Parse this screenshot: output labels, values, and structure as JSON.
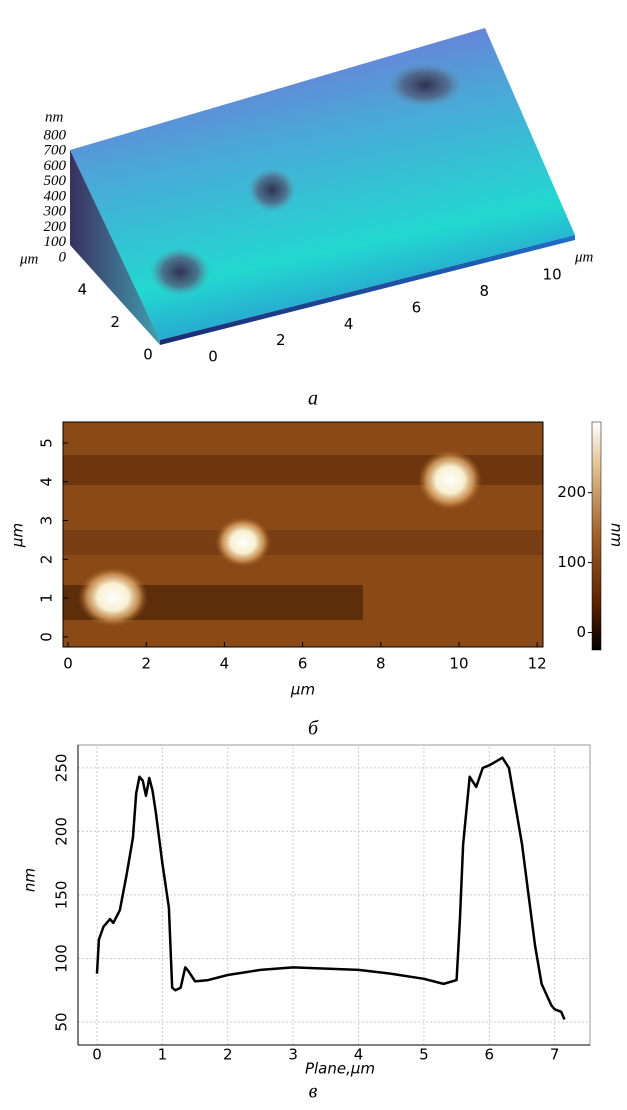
{
  "chart_data": [
    {
      "type": "surface3d",
      "zlabel": "nm",
      "ylabel": "μm",
      "xlabel": "μm",
      "caption": "a",
      "xlim": [
        0,
        11
      ],
      "xticks": [
        0,
        2,
        4,
        6,
        8,
        10
      ],
      "ylim": [
        0,
        5
      ],
      "yticks": [
        0,
        2,
        4
      ],
      "zlim": [
        0,
        800
      ],
      "zticks": [
        0,
        100,
        200,
        300,
        400,
        500,
        600,
        700,
        800
      ]
    },
    {
      "type": "heatmap",
      "xlabel": "μm",
      "ylabel": "μm",
      "colorbar_label": "nm",
      "caption": "б",
      "xlim": [
        -0.13,
        12.15
      ],
      "xticks": [
        0,
        2,
        4,
        6,
        8,
        10,
        12
      ],
      "ylim": [
        -0.26,
        5.54
      ],
      "yticks": [
        0,
        1,
        2,
        3,
        4,
        5
      ],
      "clim": [
        -25,
        301
      ],
      "cticks": [
        0,
        100,
        200
      ]
    },
    {
      "type": "line",
      "xlabel": "Plane,μm",
      "ylabel": "nm",
      "caption": "в",
      "color": "#000000",
      "grid": true,
      "xlim": [
        -0.29,
        7.54
      ],
      "xticks": [
        0,
        1,
        2,
        3,
        4,
        5,
        6,
        7
      ],
      "ylim": [
        31.9,
        268
      ],
      "yticks": [
        50,
        100,
        150,
        200,
        250
      ],
      "x": [
        0,
        0.03,
        0.1,
        0.2,
        0.25,
        0.35,
        0.45,
        0.55,
        0.6,
        0.65,
        0.7,
        0.75,
        0.8,
        0.85,
        0.9,
        0.95,
        1.0,
        1.1,
        1.15,
        1.2,
        1.28,
        1.35,
        1.4,
        1.5,
        1.7,
        2.0,
        2.5,
        3.0,
        3.5,
        4.0,
        4.5,
        5.0,
        5.3,
        5.5,
        5.55,
        5.6,
        5.7,
        5.8,
        5.9,
        6.0,
        6.1,
        6.2,
        6.3,
        6.4,
        6.5,
        6.6,
        6.7,
        6.8,
        6.95,
        7.0,
        7.1,
        7.15
      ],
      "values": [
        88,
        115,
        125,
        131,
        128,
        138,
        165,
        195,
        230,
        243,
        240,
        228,
        242,
        232,
        215,
        195,
        175,
        140,
        77,
        75,
        77,
        93,
        90,
        82,
        83,
        87,
        91,
        93,
        92,
        91,
        88,
        84,
        80,
        83,
        130,
        190,
        243,
        235,
        250,
        252,
        255,
        258,
        250,
        220,
        190,
        150,
        110,
        80,
        63,
        60,
        58,
        52
      ]
    }
  ]
}
